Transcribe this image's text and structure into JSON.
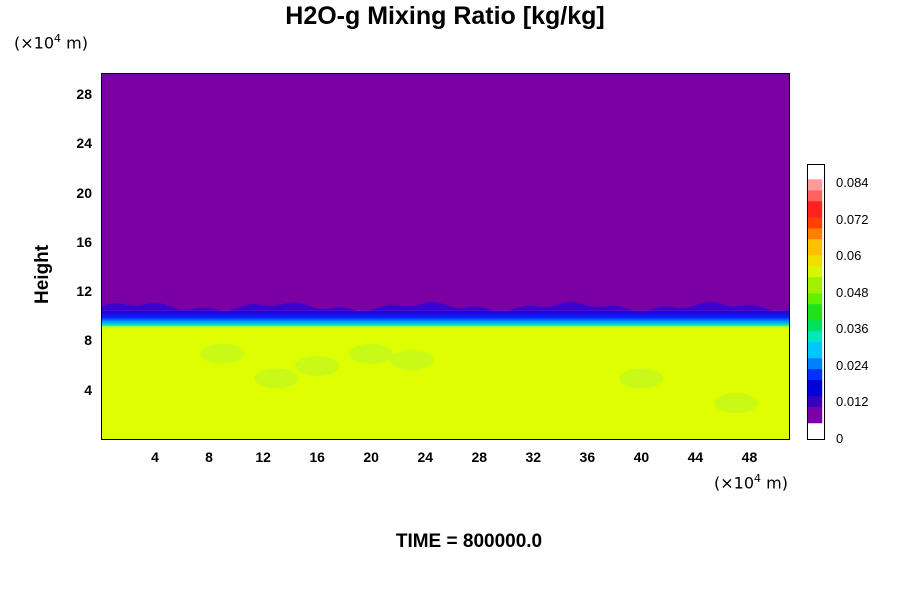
{
  "chart_data": {
    "type": "heatmap",
    "title": "H2O-g Mixing Ratio [kg/kg]",
    "ylabel": "Height",
    "y_unit": {
      "prefix": "(×10",
      "exp": "4",
      "suffix": " m)"
    },
    "x_unit": {
      "prefix": "(×10",
      "exp": "4",
      "suffix": " m)"
    },
    "time_label": "TIME = 800000.0",
    "x_range": [
      0,
      51
    ],
    "y_range": [
      0,
      29.8
    ],
    "xticks": [
      4,
      8,
      12,
      16,
      20,
      24,
      28,
      32,
      36,
      40,
      44,
      48
    ],
    "yticks": [
      4,
      8,
      12,
      16,
      20,
      24,
      28
    ],
    "colorbar": {
      "range": [
        0,
        0.09
      ],
      "ticks": [
        "0",
        "0.012",
        "0.024",
        "0.036",
        "0.048",
        "0.06",
        "0.072",
        "0.084"
      ],
      "tick_values": [
        0,
        0.012,
        0.024,
        0.036,
        0.048,
        0.06,
        0.072,
        0.084
      ]
    },
    "regions": [
      {
        "name": "upper-dry-layer",
        "y_from": 10.5,
        "y_to": 29.8,
        "value": 0.0,
        "color": "#7b00a3"
      },
      {
        "name": "transition-band",
        "y_from": 9.2,
        "y_to": 10.5,
        "value": 0.012,
        "color": "#1a1aff"
      },
      {
        "name": "lower-moist-layer",
        "y_from": 0,
        "y_to": 9.2,
        "value": 0.058,
        "color": "#ddff00"
      }
    ]
  }
}
